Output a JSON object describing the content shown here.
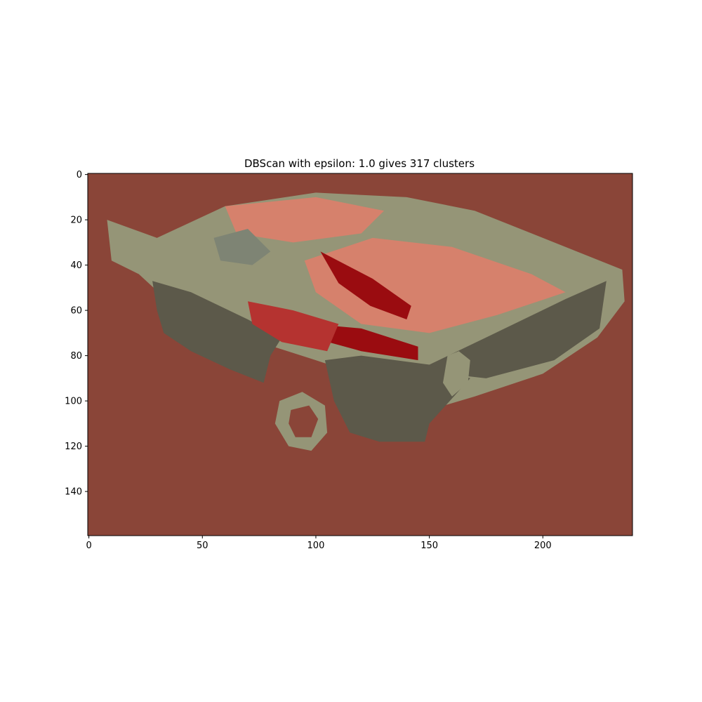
{
  "chart_data": {
    "type": "heatmap",
    "title": "DBScan with epsilon: 1.0 gives 317 clusters",
    "xlabel": "",
    "ylabel": "",
    "xlim": [
      -0.5,
      239.5
    ],
    "ylim": [
      159.5,
      -0.5
    ],
    "x_ticks": [
      0,
      50,
      100,
      150,
      200
    ],
    "y_ticks": [
      0,
      20,
      40,
      60,
      80,
      100,
      120,
      140
    ],
    "grid": false,
    "legend": "none",
    "image_size": [
      240,
      160
    ],
    "cluster_count": 317,
    "epsilon": 1.0,
    "colors": {
      "background": "#8a4538",
      "light_olive": "#959577",
      "dark_olive": "#5c594a",
      "salmon": "#d6816c",
      "crimson": "#9a0c10",
      "red": "#b53330",
      "gray_green": "#7e8474",
      "near_black": "#2b110c"
    },
    "regions": [
      {
        "name": "car-roof",
        "color": "light_olive",
        "points": [
          [
            8,
            20
          ],
          [
            30,
            28
          ],
          [
            60,
            14
          ],
          [
            100,
            8
          ],
          [
            140,
            10
          ],
          [
            170,
            16
          ],
          [
            200,
            28
          ],
          [
            235,
            42
          ],
          [
            236,
            56
          ],
          [
            224,
            72
          ],
          [
            200,
            88
          ],
          [
            170,
            98
          ],
          [
            150,
            104
          ],
          [
            130,
            92
          ],
          [
            100,
            82
          ],
          [
            75,
            74
          ],
          [
            55,
            66
          ],
          [
            35,
            56
          ],
          [
            22,
            44
          ],
          [
            10,
            38
          ]
        ]
      },
      {
        "name": "left-side-panel",
        "color": "dark_olive",
        "points": [
          [
            28,
            47
          ],
          [
            45,
            52
          ],
          [
            70,
            64
          ],
          [
            85,
            72
          ],
          [
            80,
            80
          ],
          [
            77,
            92
          ],
          [
            62,
            86
          ],
          [
            45,
            78
          ],
          [
            33,
            70
          ],
          [
            30,
            60
          ]
        ]
      },
      {
        "name": "front-bumper",
        "color": "dark_olive",
        "points": [
          [
            104,
            82
          ],
          [
            140,
            86
          ],
          [
            175,
            90
          ],
          [
            205,
            82
          ],
          [
            225,
            68
          ],
          [
            228,
            47
          ],
          [
            210,
            55
          ],
          [
            175,
            72
          ],
          [
            150,
            84
          ],
          [
            120,
            80
          ]
        ]
      },
      {
        "name": "front-fascia",
        "color": "dark_olive",
        "points": [
          [
            104,
            82
          ],
          [
            150,
            84
          ],
          [
            168,
            90
          ],
          [
            150,
            110
          ],
          [
            148,
            118
          ],
          [
            128,
            118
          ],
          [
            115,
            114
          ],
          [
            108,
            100
          ]
        ]
      },
      {
        "name": "windshield-area",
        "color": "salmon",
        "points": [
          [
            95,
            38
          ],
          [
            125,
            28
          ],
          [
            160,
            32
          ],
          [
            195,
            44
          ],
          [
            210,
            52
          ],
          [
            180,
            62
          ],
          [
            150,
            70
          ],
          [
            120,
            66
          ],
          [
            100,
            52
          ]
        ]
      },
      {
        "name": "hood-reflection",
        "color": "salmon",
        "points": [
          [
            60,
            14
          ],
          [
            100,
            10
          ],
          [
            130,
            16
          ],
          [
            120,
            26
          ],
          [
            90,
            30
          ],
          [
            65,
            26
          ]
        ]
      },
      {
        "name": "red-streak-1",
        "color": "crimson",
        "points": [
          [
            102,
            34
          ],
          [
            125,
            46
          ],
          [
            142,
            58
          ],
          [
            140,
            64
          ],
          [
            124,
            58
          ],
          [
            110,
            48
          ]
        ]
      },
      {
        "name": "red-streak-2",
        "color": "crimson",
        "points": [
          [
            98,
            66
          ],
          [
            120,
            68
          ],
          [
            145,
            76
          ],
          [
            145,
            82
          ],
          [
            120,
            78
          ],
          [
            98,
            72
          ]
        ]
      },
      {
        "name": "red-patch",
        "color": "red",
        "points": [
          [
            70,
            56
          ],
          [
            90,
            60
          ],
          [
            110,
            66
          ],
          [
            105,
            78
          ],
          [
            85,
            74
          ],
          [
            72,
            66
          ]
        ]
      },
      {
        "name": "gray-band",
        "color": "gray_green",
        "points": [
          [
            55,
            28
          ],
          [
            70,
            24
          ],
          [
            80,
            34
          ],
          [
            72,
            40
          ],
          [
            58,
            38
          ]
        ]
      },
      {
        "name": "headlight",
        "color": "light_olive",
        "points": [
          [
            158,
            80
          ],
          [
            163,
            78
          ],
          [
            168,
            82
          ],
          [
            167,
            92
          ],
          [
            160,
            98
          ],
          [
            156,
            92
          ]
        ]
      },
      {
        "name": "wheel",
        "color": "light_olive",
        "points": [
          [
            84,
            100
          ],
          [
            94,
            96
          ],
          [
            104,
            102
          ],
          [
            105,
            114
          ],
          [
            98,
            122
          ],
          [
            88,
            120
          ],
          [
            82,
            110
          ]
        ]
      },
      {
        "name": "wheel-hub",
        "color": "background",
        "points": [
          [
            89,
            104
          ],
          [
            97,
            102
          ],
          [
            101,
            108
          ],
          [
            98,
            116
          ],
          [
            91,
            116
          ],
          [
            88,
            110
          ]
        ]
      }
    ]
  }
}
